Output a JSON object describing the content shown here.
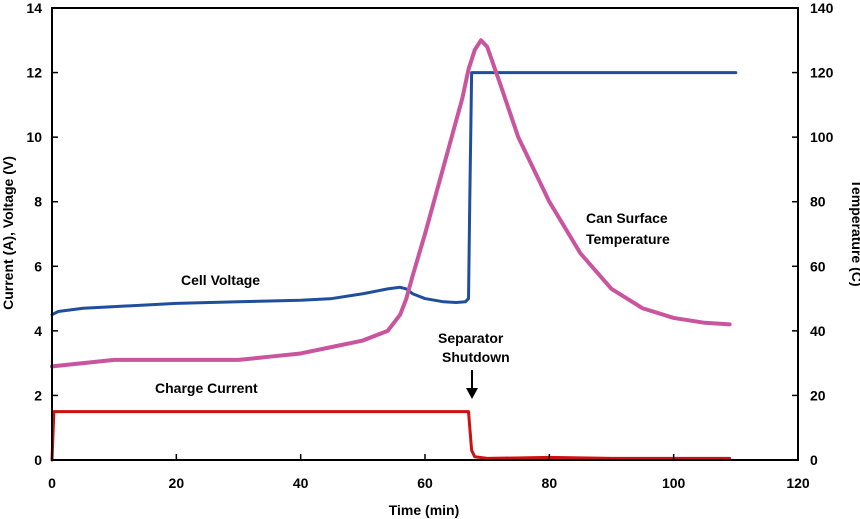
{
  "chart_data": {
    "type": "line",
    "title": "",
    "xlabel": "Time (min)",
    "ylabel_left": "Current (A), Voltage (V)",
    "ylabel_right": "Temperature (C)",
    "xlim": [
      0,
      120
    ],
    "ylim_left": [
      0,
      14
    ],
    "ylim_right": [
      0,
      140
    ],
    "x_ticks": [
      "0",
      "20",
      "40",
      "60",
      "80",
      "100",
      "120"
    ],
    "y_left_ticks": [
      "0",
      "2",
      "4",
      "6",
      "8",
      "10",
      "12",
      "14"
    ],
    "y_right_ticks": [
      "0",
      "20",
      "40",
      "60",
      "80",
      "100",
      "120",
      "140"
    ],
    "grid": false,
    "colors": {
      "voltage": "#1f4e9c",
      "temperature": "#c8559e",
      "current": "#cc1111"
    },
    "series": [
      {
        "key": "voltage",
        "axis": "left",
        "x": [
          0,
          1,
          5,
          10,
          20,
          30,
          40,
          45,
          50,
          54,
          56,
          57,
          58,
          60,
          63,
          65,
          66.5,
          67,
          67.2,
          67.5,
          110
        ],
        "y": [
          4.5,
          4.6,
          4.7,
          4.75,
          4.85,
          4.9,
          4.95,
          5.0,
          5.15,
          5.3,
          5.35,
          5.3,
          5.15,
          5.0,
          4.9,
          4.88,
          4.9,
          5.0,
          8.0,
          12.0,
          12.0
        ]
      },
      {
        "key": "temperature",
        "axis": "right",
        "x": [
          0,
          5,
          10,
          20,
          30,
          35,
          40,
          45,
          50,
          54,
          56,
          57,
          58,
          60,
          62,
          64,
          66,
          67,
          68,
          69,
          70,
          72,
          75,
          80,
          85,
          90,
          95,
          100,
          105,
          109
        ],
        "y": [
          29,
          30,
          31,
          31,
          31,
          32,
          33,
          35,
          37,
          40,
          45,
          50,
          57,
          70,
          84,
          98,
          112,
          121,
          127,
          130,
          128,
          117,
          100,
          80,
          64,
          53,
          47,
          44,
          42.5,
          42
        ]
      },
      {
        "key": "current",
        "axis": "left",
        "x": [
          0,
          0.3,
          67,
          67.5,
          68,
          70,
          80,
          90,
          109
        ],
        "y": [
          0,
          1.5,
          1.5,
          0.3,
          0.1,
          0.05,
          0.08,
          0.05,
          0.05
        ]
      }
    ],
    "annotations": [
      {
        "key": "cell_voltage",
        "text": "Cell Voltage"
      },
      {
        "key": "charge_current",
        "text": "Charge Current"
      },
      {
        "key": "can_surface_1",
        "text": "Can Surface"
      },
      {
        "key": "can_surface_2",
        "text": "Temperature"
      },
      {
        "key": "separator_1",
        "text": "Separator"
      },
      {
        "key": "separator_2",
        "text": "Shutdown"
      }
    ]
  }
}
